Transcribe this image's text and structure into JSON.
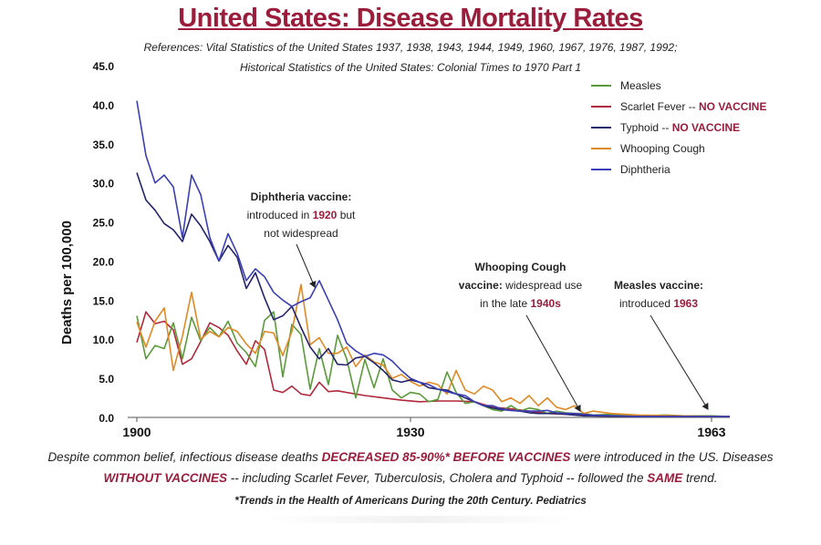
{
  "title": "United States: Disease Mortality Rates",
  "references": {
    "line1": "References: Vital Statistics of the United States 1937, 1938, 1943, 1944, 1949, 1960, 1967, 1976, 1987, 1992;",
    "line2": "Historical Statistics of the United States: Colonial Times to 1970 Part 1"
  },
  "legend": [
    {
      "name": "Measles",
      "suffix": "",
      "color": "#5a9a3a"
    },
    {
      "name": "Scarlet Fever -- ",
      "suffix": "NO VACCINE",
      "color": "#b0283a"
    },
    {
      "name": "Typhoid -- ",
      "suffix": "NO VACCINE",
      "color": "#23236e"
    },
    {
      "name": "Whooping Cough",
      "suffix": "",
      "color": "#e08a26"
    },
    {
      "name": "Diphtheria",
      "suffix": "",
      "color": "#3b3fb5"
    }
  ],
  "annotations": {
    "diphtheria": {
      "title": "Diphtheria vaccine:",
      "pre": "introduced in ",
      "year": "1920",
      "post": " but",
      "line3": "not widespread"
    },
    "whooping": {
      "title": "Whooping Cough",
      "title2": "vaccine:",
      "rest": " widespread use",
      "pre3": "in the late ",
      "year": "1940s"
    },
    "measles": {
      "title": "Measles vaccine:",
      "pre": "introduced ",
      "year": "1963"
    }
  },
  "caption": {
    "p1": "Despite common belief, infectious disease deaths ",
    "h1": "DECREASED 85-90%* BEFORE VACCINES",
    "p2": " were introduced in the US. Diseases",
    "h2": "WITHOUT VACCINES",
    "p3": " -- including Scarlet Fever, Tuberculosis, Cholera and Typhoid -- followed the ",
    "h3": "SAME",
    "p4": " trend."
  },
  "citation": "*Trends in the Health of Americans During the 20th Century. Pediatrics",
  "chart_data": {
    "type": "line",
    "ylabel": "Deaths per 100,000",
    "xlabel": "",
    "xlim": [
      1899,
      1965
    ],
    "ylim": [
      0,
      45
    ],
    "y_ticks": [
      "0.0",
      "5.0",
      "10.0",
      "15.0",
      "20.0",
      "25.0",
      "30.0",
      "35.0",
      "40.0",
      "45.0"
    ],
    "x_ticks": [
      "1900",
      "1930",
      "1963"
    ],
    "grid": false,
    "legend_position": "top-right",
    "series": [
      {
        "name": "Measles",
        "color": "#5a9a3a",
        "x": [
          1900,
          1901,
          1902,
          1903,
          1904,
          1905,
          1906,
          1907,
          1908,
          1909,
          1910,
          1911,
          1912,
          1913,
          1914,
          1915,
          1916,
          1917,
          1918,
          1919,
          1920,
          1921,
          1922,
          1923,
          1924,
          1925,
          1926,
          1927,
          1928,
          1929,
          1930,
          1931,
          1932,
          1933,
          1934,
          1935,
          1936,
          1937,
          1938,
          1939,
          1940,
          1941,
          1942,
          1943,
          1944,
          1945,
          1946,
          1947,
          1948,
          1949,
          1950,
          1952,
          1955,
          1958,
          1960,
          1963,
          1965
        ],
        "y": [
          13,
          7.5,
          9.2,
          8.8,
          12.1,
          7.5,
          12.8,
          9.8,
          11.5,
          10.3,
          12.3,
          9.5,
          8.3,
          6.5,
          12.4,
          13.5,
          5.2,
          11.9,
          10.6,
          3.6,
          8.8,
          4.2,
          10.5,
          7.5,
          2.5,
          7.4,
          3.8,
          7.5,
          3.5,
          2.5,
          3.2,
          3.0,
          2.0,
          2.3,
          5.8,
          3.2,
          1.8,
          2.0,
          1.5,
          1.0,
          0.8,
          1.5,
          0.8,
          1.2,
          1.0,
          0.5,
          0.8,
          0.6,
          0.5,
          0.5,
          0.3,
          0.4,
          0.2,
          0.3,
          0.2,
          0.2,
          0.1
        ]
      },
      {
        "name": "Scarlet Fever -- NO VACCINE",
        "color": "#b0283a",
        "x": [
          1900,
          1901,
          1902,
          1903,
          1904,
          1905,
          1906,
          1907,
          1908,
          1909,
          1910,
          1911,
          1912,
          1913,
          1914,
          1915,
          1916,
          1917,
          1918,
          1919,
          1920,
          1921,
          1922,
          1923,
          1925,
          1927,
          1929,
          1931,
          1933,
          1935,
          1937,
          1939,
          1941,
          1943,
          1945,
          1947,
          1950,
          1955,
          1960,
          1965
        ],
        "y": [
          9.6,
          13.5,
          12,
          12.3,
          11.2,
          6.8,
          7.5,
          9.7,
          12.1,
          11.5,
          10.5,
          8.5,
          6.8,
          9.8,
          8.7,
          3.5,
          3.2,
          4.0,
          3.0,
          2.8,
          4.5,
          3.3,
          3.4,
          3.2,
          2.8,
          2.5,
          2.2,
          2.0,
          2.1,
          2.1,
          2.0,
          1.3,
          1.1,
          0.8,
          0.5,
          0.4,
          0.2,
          0.1,
          0.1,
          0.1
        ]
      },
      {
        "name": "Typhoid -- NO VACCINE",
        "color": "#23236e",
        "x": [
          1900,
          1901,
          1902,
          1903,
          1904,
          1905,
          1906,
          1907,
          1908,
          1909,
          1910,
          1911,
          1912,
          1913,
          1914,
          1915,
          1916,
          1917,
          1918,
          1919,
          1920,
          1921,
          1922,
          1923,
          1924,
          1925,
          1926,
          1927,
          1928,
          1929,
          1930,
          1931,
          1932,
          1933,
          1934,
          1935,
          1936,
          1937,
          1938,
          1939,
          1940,
          1941,
          1942,
          1943,
          1944,
          1945,
          1946,
          1947,
          1948,
          1949,
          1950,
          1955,
          1960,
          1965
        ],
        "y": [
          31.3,
          27.8,
          26.5,
          24.8,
          24,
          22.5,
          26,
          24.5,
          22.5,
          20,
          22,
          20.5,
          16.5,
          18.5,
          15.3,
          12.5,
          13,
          14.2,
          11.5,
          9.0,
          7.5,
          8.8,
          6.8,
          6.7,
          7.6,
          7.8,
          7.0,
          6.0,
          4.8,
          4.5,
          4.8,
          4.5,
          3.8,
          3.6,
          3.5,
          3.0,
          2.5,
          2.0,
          1.5,
          1.2,
          1.0,
          0.9,
          0.8,
          0.6,
          0.5,
          0.5,
          0.5,
          0.4,
          0.3,
          0.2,
          0.2,
          0.1,
          0.1,
          0.1
        ]
      },
      {
        "name": "Whooping Cough",
        "color": "#e08a26",
        "x": [
          1900,
          1901,
          1902,
          1903,
          1904,
          1905,
          1906,
          1907,
          1908,
          1909,
          1910,
          1911,
          1912,
          1913,
          1914,
          1915,
          1916,
          1917,
          1918,
          1919,
          1920,
          1921,
          1922,
          1923,
          1924,
          1925,
          1926,
          1927,
          1928,
          1929,
          1930,
          1931,
          1932,
          1933,
          1934,
          1935,
          1936,
          1937,
          1938,
          1939,
          1940,
          1941,
          1942,
          1943,
          1944,
          1945,
          1946,
          1947,
          1948,
          1949,
          1950,
          1952,
          1955,
          1960,
          1965
        ],
        "y": [
          12.2,
          9,
          12.3,
          14,
          6,
          10.4,
          16,
          10,
          11,
          10.3,
          11.5,
          11,
          9.4,
          8.2,
          11,
          10.8,
          7.9,
          11,
          17,
          9.3,
          10.2,
          8.2,
          8.2,
          9,
          6.5,
          8.0,
          7.1,
          6.7,
          5.0,
          5.5,
          4.6,
          4.0,
          4.5,
          4.2,
          3.0,
          6.0,
          3.5,
          3.0,
          4.0,
          3.5,
          2.0,
          2.5,
          1.8,
          2.8,
          1.5,
          2.5,
          1.3,
          1.0,
          1.5,
          0.5,
          0.8,
          0.5,
          0.3,
          0.2,
          0.1
        ]
      },
      {
        "name": "Diphtheria",
        "color": "#3b3fb5",
        "x": [
          1900,
          1901,
          1902,
          1903,
          1904,
          1905,
          1906,
          1907,
          1908,
          1909,
          1910,
          1911,
          1912,
          1913,
          1914,
          1915,
          1916,
          1917,
          1918,
          1919,
          1920,
          1921,
          1922,
          1923,
          1924,
          1925,
          1926,
          1927,
          1928,
          1929,
          1930,
          1931,
          1932,
          1933,
          1934,
          1935,
          1936,
          1937,
          1938,
          1939,
          1940,
          1941,
          1942,
          1943,
          1944,
          1945,
          1946,
          1947,
          1948,
          1949,
          1950,
          1955,
          1960,
          1965
        ],
        "y": [
          40.5,
          33.5,
          30,
          31,
          29.5,
          23,
          31,
          28.5,
          23,
          20,
          23.5,
          21,
          17.5,
          19,
          18,
          16,
          15,
          14.2,
          14.8,
          15.3,
          17.5,
          15,
          12.5,
          9.5,
          8.5,
          7.8,
          8.2,
          8.0,
          7.2,
          6.0,
          5.0,
          4.5,
          4.2,
          3.6,
          3.3,
          3.0,
          2.8,
          2.0,
          1.5,
          1.5,
          1.1,
          0.9,
          0.8,
          0.8,
          0.8,
          0.9,
          0.6,
          0.5,
          0.5,
          0.4,
          0.3,
          0.1,
          0.1,
          0.1
        ]
      }
    ]
  }
}
